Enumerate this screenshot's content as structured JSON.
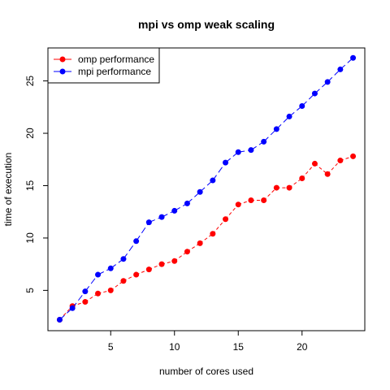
{
  "chart_data": {
    "type": "line",
    "title": "mpi vs omp weak scaling",
    "xlabel": "number of cores used",
    "ylabel": "time of execution",
    "x": [
      1,
      2,
      3,
      4,
      5,
      6,
      7,
      8,
      9,
      10,
      11,
      12,
      13,
      14,
      15,
      16,
      17,
      18,
      19,
      20,
      21,
      22,
      23,
      24
    ],
    "xlim": [
      0.08,
      24.92
    ],
    "ylim": [
      1.15,
      28.15
    ],
    "xticks": [
      5,
      10,
      15,
      20
    ],
    "yticks": [
      5,
      10,
      15,
      20,
      25
    ],
    "grid": false,
    "legend_position": "top-left",
    "series": [
      {
        "name": "omp performance",
        "color": "#ff0000",
        "line_style": "dashed",
        "values": [
          2.2,
          3.5,
          3.9,
          4.7,
          5.0,
          5.9,
          6.5,
          7.0,
          7.5,
          7.8,
          8.7,
          9.5,
          10.4,
          11.8,
          13.2,
          13.6,
          13.6,
          14.8,
          14.8,
          15.7,
          17.1,
          16.1,
          17.4,
          17.8
        ]
      },
      {
        "name": "mpi performance",
        "color": "#0000ff",
        "line_style": "dashed",
        "values": [
          2.2,
          3.3,
          4.9,
          6.5,
          7.1,
          8.0,
          9.7,
          11.5,
          12.0,
          12.6,
          13.3,
          14.4,
          15.5,
          17.2,
          18.2,
          18.4,
          19.2,
          20.4,
          21.6,
          22.6,
          23.8,
          24.9,
          26.1,
          27.2
        ]
      }
    ]
  }
}
